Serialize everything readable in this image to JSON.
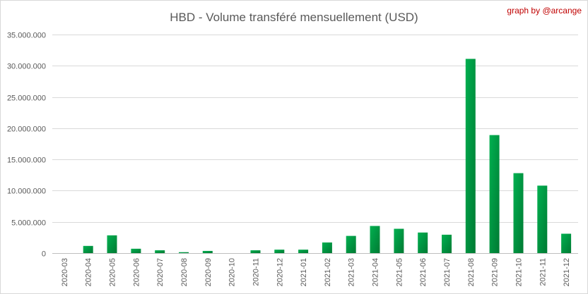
{
  "chart_data": {
    "type": "bar",
    "title": "HBD - Volume transféré mensuellement (USD)",
    "credit": "graph by @arcange",
    "xlabel": "",
    "ylabel": "",
    "ylim": [
      0,
      35000000
    ],
    "ytick_values": [
      0,
      5000000,
      10000000,
      15000000,
      20000000,
      25000000,
      30000000,
      35000000
    ],
    "ytick_labels": [
      "0",
      "5.000.000",
      "10.000.000",
      "15.000.000",
      "20.000.000",
      "25.000.000",
      "30.000.000",
      "35.000.000"
    ],
    "grid": true,
    "legend": "none",
    "bar_color_light": "#00b050",
    "bar_color_dark": "#007a33",
    "categories": [
      "2020-03",
      "2020-04",
      "2020-05",
      "2020-06",
      "2020-07",
      "2020-08",
      "2020-09",
      "2020-10",
      "2020-11",
      "2020-12",
      "2021-01",
      "2021-02",
      "2021-03",
      "2021-04",
      "2021-05",
      "2021-06",
      "2021-07",
      "2021-08",
      "2021-09",
      "2021-10",
      "2021-11",
      "2021-12"
    ],
    "values": [
      0,
      1150000,
      2850000,
      700000,
      450000,
      150000,
      350000,
      0,
      450000,
      550000,
      550000,
      1700000,
      2750000,
      4350000,
      3900000,
      3300000,
      2950000,
      31100000,
      18900000,
      12800000,
      10800000,
      3100000
    ]
  }
}
